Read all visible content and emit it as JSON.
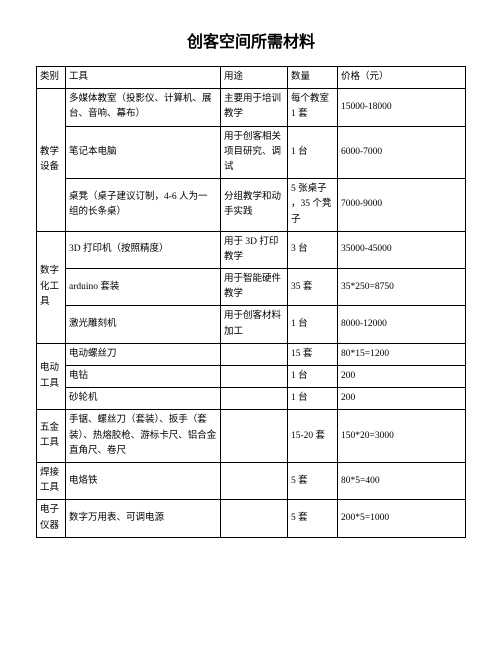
{
  "title": "创客空间所需材料",
  "headers": {
    "cat": "类别",
    "tool": "工具",
    "use": "用途",
    "qty": "数量",
    "price": "价格（元）"
  },
  "cats": {
    "teach": "教学设备",
    "digital": "数字化工具",
    "power": "电动工具",
    "hardware": "五金工具",
    "solder": "焊接工具",
    "elec": "电子仪器"
  },
  "rows": {
    "r1": {
      "tool": "多媒体教室（投影仪、计算机、展台、音响、幕布）",
      "use": "主要用于培训教学",
      "qty": "每个教室 1 套",
      "price": "15000-18000"
    },
    "r2": {
      "tool": "笔记本电脑",
      "use": "用于创客相关项目研究、调试",
      "qty": "1 台",
      "price": "6000-7000"
    },
    "r3": {
      "tool": "桌凳（桌子建议订制，4-6 人为一组的长条桌）",
      "use": "分组教学和动手实践",
      "qty": "5 张桌子 ，35 个凳子",
      "price": "7000-9000"
    },
    "r4": {
      "tool": "3D 打印机（按照精度）",
      "use": "用于 3D 打印教学",
      "qty": "3 台",
      "price": "35000-45000"
    },
    "r5": {
      "tool": "arduino 套装",
      "use": "用于智能硬件教学",
      "qty": "35 套",
      "price": "35*250=8750"
    },
    "r6": {
      "tool": "激光雕刻机",
      "use": "用于创客材料加工",
      "qty": "1 台",
      "price": "8000-12000"
    },
    "r7": {
      "tool": "电动螺丝刀",
      "use": "",
      "qty": "15 套",
      "price": "80*15=1200"
    },
    "r8": {
      "tool": "电钻",
      "use": "",
      "qty": "1 台",
      "price": "200"
    },
    "r9": {
      "tool": "砂轮机",
      "use": "",
      "qty": "1 台",
      "price": "200"
    },
    "r10": {
      "tool": "手锯、螺丝刀（套装）、扳手（套装）、热熔胶枪、游标卡尺、铝合金直角尺、卷尺",
      "use": "",
      "qty": "15-20 套",
      "price": "150*20=3000"
    },
    "r11": {
      "tool": "电烙铁",
      "use": "",
      "qty": "5 套",
      "price": "80*5=400"
    },
    "r12": {
      "tool": "数字万用表、可调电源",
      "use": "",
      "qty": "5 套",
      "price": "200*5=1000"
    }
  }
}
